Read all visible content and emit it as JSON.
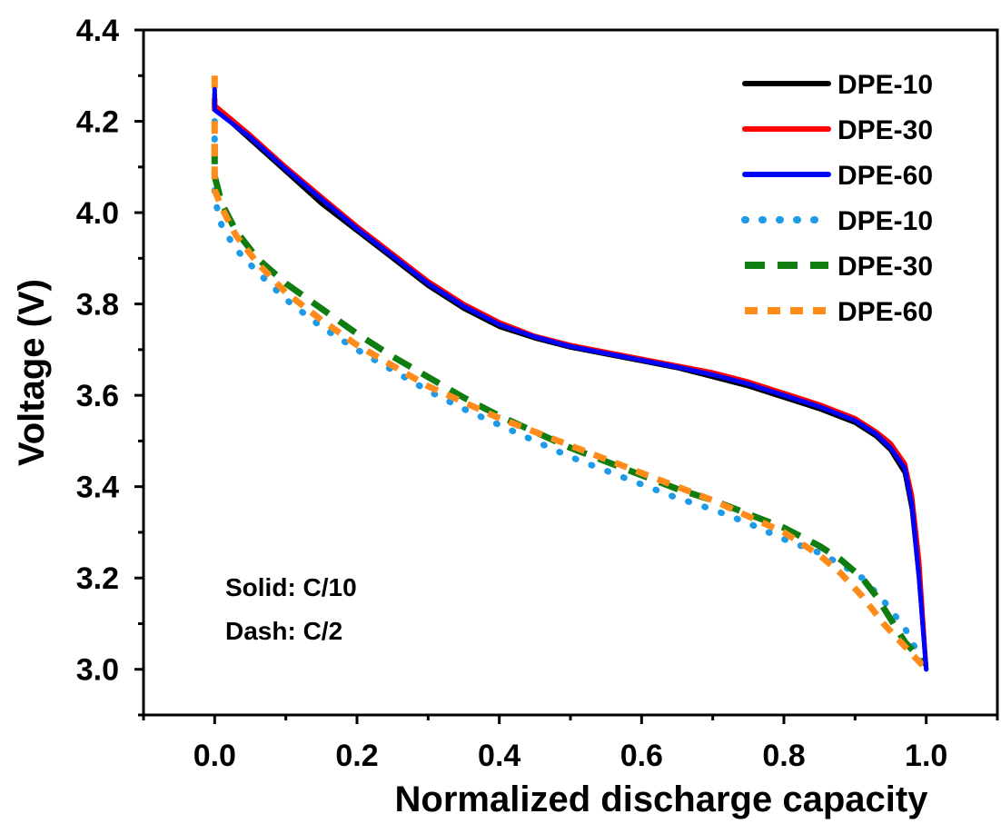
{
  "chart_data": {
    "type": "line",
    "title": "",
    "xlabel": "Normalized discharge capacity",
    "ylabel": "Voltage (V)",
    "xlim": [
      -0.1,
      1.1
    ],
    "ylim": [
      2.9,
      4.4
    ],
    "xticks": [
      "0.0",
      "0.2",
      "0.4",
      "0.6",
      "0.8",
      "1.0"
    ],
    "yticks": [
      "3.0",
      "3.2",
      "3.4",
      "3.6",
      "3.8",
      "4.0",
      "4.2",
      "4.4"
    ],
    "grid": false,
    "legend_position": "top-right",
    "annotations": [
      "Solid: C/10",
      "Dash: C/2"
    ],
    "series": [
      {
        "name": "DPE-10",
        "style": "solid",
        "color": "#000000",
        "x": [
          0,
          0,
          0.05,
          0.1,
          0.15,
          0.2,
          0.25,
          0.3,
          0.35,
          0.4,
          0.45,
          0.5,
          0.55,
          0.6,
          0.65,
          0.7,
          0.75,
          0.8,
          0.85,
          0.9,
          0.93,
          0.95,
          0.97,
          0.98,
          0.99,
          1.0
        ],
        "y": [
          4.26,
          4.23,
          4.16,
          4.09,
          4.02,
          3.96,
          3.9,
          3.84,
          3.79,
          3.75,
          3.725,
          3.705,
          3.69,
          3.675,
          3.66,
          3.64,
          3.62,
          3.595,
          3.57,
          3.54,
          3.51,
          3.48,
          3.43,
          3.35,
          3.2,
          3.0
        ]
      },
      {
        "name": "DPE-30",
        "style": "solid",
        "color": "#ff0000",
        "x": [
          0,
          0,
          0.05,
          0.1,
          0.15,
          0.2,
          0.25,
          0.3,
          0.35,
          0.4,
          0.45,
          0.5,
          0.55,
          0.6,
          0.65,
          0.7,
          0.75,
          0.8,
          0.85,
          0.9,
          0.93,
          0.95,
          0.97,
          0.98,
          0.99,
          1.0
        ],
        "y": [
          4.26,
          4.235,
          4.17,
          4.1,
          4.035,
          3.97,
          3.91,
          3.85,
          3.8,
          3.76,
          3.73,
          3.71,
          3.695,
          3.68,
          3.665,
          3.65,
          3.63,
          3.605,
          3.58,
          3.55,
          3.52,
          3.495,
          3.45,
          3.38,
          3.24,
          3.0
        ]
      },
      {
        "name": "DPE-60",
        "style": "solid",
        "color": "#0000ff",
        "x": [
          0,
          0,
          0.05,
          0.1,
          0.15,
          0.2,
          0.25,
          0.3,
          0.35,
          0.4,
          0.45,
          0.5,
          0.55,
          0.6,
          0.65,
          0.7,
          0.75,
          0.8,
          0.85,
          0.9,
          0.93,
          0.95,
          0.97,
          0.98,
          0.99,
          1.0
        ],
        "y": [
          4.27,
          4.225,
          4.165,
          4.095,
          4.03,
          3.965,
          3.905,
          3.845,
          3.795,
          3.755,
          3.728,
          3.707,
          3.692,
          3.677,
          3.662,
          3.645,
          3.625,
          3.6,
          3.575,
          3.545,
          3.515,
          3.485,
          3.44,
          3.36,
          3.2,
          3.0
        ]
      },
      {
        "name": "DPE-10",
        "style": "dotted",
        "color": "#1e9be8",
        "x": [
          0,
          0,
          0.01,
          0.03,
          0.06,
          0.1,
          0.15,
          0.2,
          0.25,
          0.3,
          0.35,
          0.4,
          0.45,
          0.5,
          0.55,
          0.6,
          0.65,
          0.7,
          0.75,
          0.8,
          0.85,
          0.88,
          0.91,
          0.94,
          0.97,
          1.0
        ],
        "y": [
          4.2,
          4.03,
          3.97,
          3.92,
          3.87,
          3.81,
          3.75,
          3.7,
          3.655,
          3.61,
          3.57,
          3.535,
          3.5,
          3.465,
          3.435,
          3.405,
          3.375,
          3.35,
          3.32,
          3.285,
          3.255,
          3.23,
          3.2,
          3.15,
          3.09,
          3.0
        ]
      },
      {
        "name": "DPE-30",
        "style": "dashed",
        "color": "#0f7d0f",
        "x": [
          0,
          0,
          0.01,
          0.03,
          0.06,
          0.1,
          0.15,
          0.2,
          0.25,
          0.3,
          0.35,
          0.4,
          0.45,
          0.5,
          0.55,
          0.6,
          0.65,
          0.7,
          0.75,
          0.8,
          0.85,
          0.88,
          0.91,
          0.93,
          0.95,
          0.97,
          1.0
        ],
        "y": [
          4.15,
          4.08,
          4.02,
          3.96,
          3.9,
          3.845,
          3.79,
          3.735,
          3.685,
          3.64,
          3.595,
          3.555,
          3.52,
          3.485,
          3.455,
          3.425,
          3.395,
          3.37,
          3.34,
          3.31,
          3.27,
          3.24,
          3.2,
          3.16,
          3.11,
          3.06,
          3.01
        ]
      },
      {
        "name": "DPE-60",
        "style": "dashed",
        "color": "#ff8c1a",
        "x": [
          0,
          0,
          0.01,
          0.03,
          0.06,
          0.1,
          0.15,
          0.2,
          0.25,
          0.3,
          0.35,
          0.4,
          0.45,
          0.5,
          0.55,
          0.6,
          0.65,
          0.7,
          0.75,
          0.8,
          0.85,
          0.88,
          0.91,
          0.94,
          0.97,
          1.0
        ],
        "y": [
          4.3,
          4.05,
          4.01,
          3.95,
          3.89,
          3.825,
          3.765,
          3.71,
          3.665,
          3.62,
          3.585,
          3.55,
          3.52,
          3.49,
          3.46,
          3.43,
          3.4,
          3.37,
          3.335,
          3.3,
          3.25,
          3.21,
          3.16,
          3.1,
          3.05,
          3.0
        ]
      }
    ]
  }
}
